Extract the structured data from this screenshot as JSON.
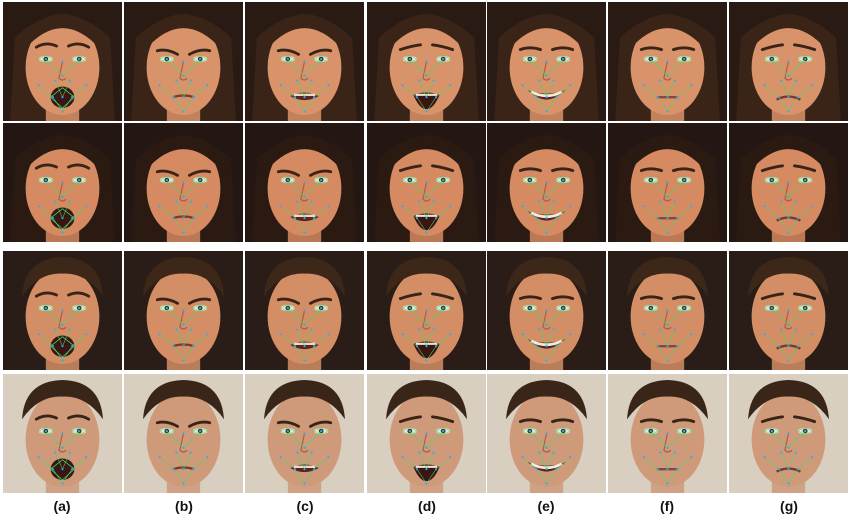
{
  "column_labels": [
    "(a)",
    "(b)",
    "(c)",
    "(d)",
    "(e)",
    "(f)",
    "(g)"
  ],
  "rows": [
    {
      "subject": "woman-1",
      "hair": "#3a2418",
      "skin": "#d9936a",
      "bg": "#2a1a14",
      "hair_style": "long"
    },
    {
      "subject": "woman-2",
      "hair": "#2b1a12",
      "skin": "#d58a62",
      "bg": "#241612",
      "hair_style": "long"
    },
    {
      "subject": "man-1",
      "hair": "#3d2718",
      "skin": "#d38e66",
      "bg": "#2a1c16",
      "hair_style": "short"
    },
    {
      "subject": "man-2",
      "hair": "#3a2618",
      "skin": "#cf9a7a",
      "bg": "#d8cfc0",
      "hair_style": "short"
    }
  ],
  "expressions": [
    "open-mouth",
    "frown",
    "disgust",
    "fear",
    "smile",
    "neutral",
    "sad"
  ],
  "colors": {
    "landmark_lines": "#37e06a",
    "landmark_points": "#3aa0ff"
  }
}
